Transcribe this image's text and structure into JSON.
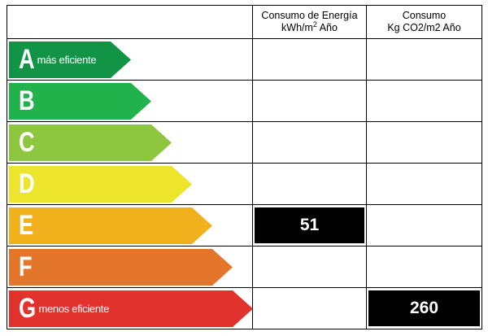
{
  "header": {
    "energy_line1": "Consumo de Energía",
    "energy_line2_pre": "kWh/m",
    "energy_line2_sup": "2",
    "energy_line2_post": " Año",
    "co2_line1": "Consumo",
    "co2_line2": "Kg CO2/m2 Año"
  },
  "rating": {
    "bars": [
      {
        "letter": "A",
        "note": "más eficiente",
        "color": "#129447"
      },
      {
        "letter": "B",
        "note": "",
        "color": "#21b24b"
      },
      {
        "letter": "C",
        "note": "",
        "color": "#8dc63f"
      },
      {
        "letter": "D",
        "note": "",
        "color": "#ece52b"
      },
      {
        "letter": "E",
        "note": "",
        "color": "#f0b11d"
      },
      {
        "letter": "F",
        "note": "",
        "color": "#e3762a"
      },
      {
        "letter": "G",
        "note": "menos eficiente",
        "color": "#e2322e"
      }
    ],
    "energy_value": "51",
    "energy_class": "E",
    "co2_value": "260",
    "co2_class": "G"
  }
}
